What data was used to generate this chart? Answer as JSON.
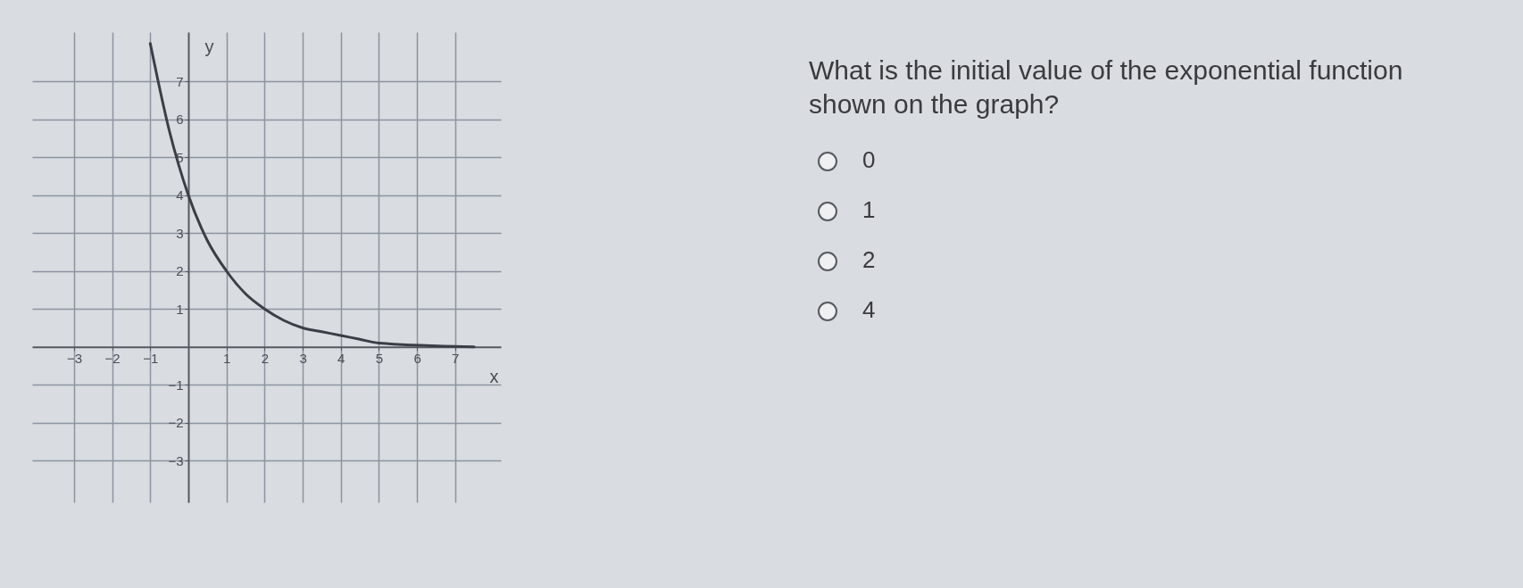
{
  "chart_data": {
    "type": "line",
    "title": "What is the initial value of the exponential function shown on the graph?",
    "xlabel": "x",
    "ylabel": "y",
    "x": [
      -1,
      -0.5,
      0,
      0.5,
      1,
      1.5,
      2,
      2.5,
      3,
      3.5,
      4,
      4.5,
      5,
      7.5
    ],
    "values": [
      8,
      5.7,
      4,
      2.8,
      2,
      1.4,
      1,
      0.7,
      0.5,
      0.4,
      0.3,
      0.2,
      0.1,
      0
    ],
    "color": "#3b3e46",
    "marker": "none",
    "line_style": "solid",
    "xlim": [
      -4.1,
      8.2
    ],
    "ylim": [
      -4.1,
      8.3
    ],
    "xticks": [
      -3,
      -2,
      -1,
      1,
      2,
      3,
      4,
      5,
      6,
      7
    ],
    "yticks": [
      -3,
      -2,
      -1,
      1,
      2,
      3,
      4,
      5,
      6,
      7
    ],
    "grid": true,
    "annotations": [
      "0",
      "1",
      "2",
      "4"
    ]
  }
}
